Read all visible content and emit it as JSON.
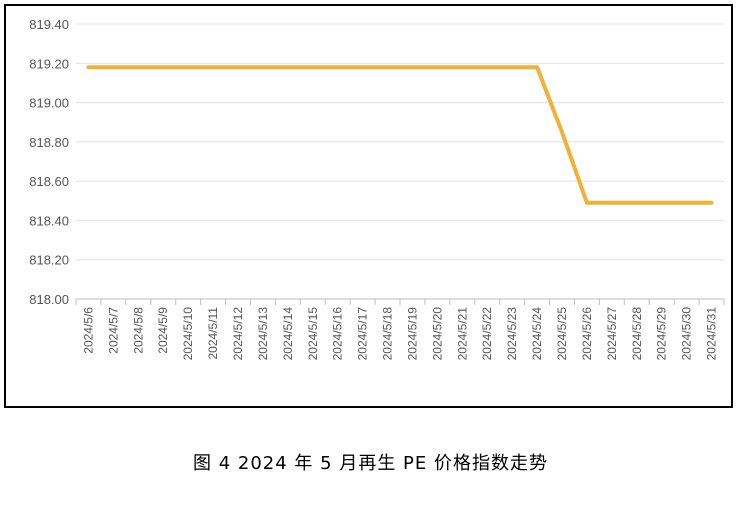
{
  "caption": "图 4  2024 年 5 月再生 PE 价格指数走势",
  "chart_data": {
    "type": "line",
    "title": "",
    "xlabel": "",
    "ylabel": "",
    "ylim": [
      818.0,
      819.4
    ],
    "yticks": [
      "819.40",
      "819.20",
      "819.00",
      "818.80",
      "818.60",
      "818.40",
      "818.20",
      "818.00"
    ],
    "grid": true,
    "categories": [
      "2024/5/6",
      "2024/5/7",
      "2024/5/8",
      "2024/5/9",
      "2024/5/10",
      "2024/5/11",
      "2024/5/12",
      "2024/5/13",
      "2024/5/14",
      "2024/5/15",
      "2024/5/16",
      "2024/5/17",
      "2024/5/18",
      "2024/5/19",
      "2024/5/20",
      "2024/5/21",
      "2024/5/22",
      "2024/5/23",
      "2024/5/24",
      "2024/5/25",
      "2024/5/26",
      "2024/5/27",
      "2024/5/28",
      "2024/5/29",
      "2024/5/30",
      "2024/5/31"
    ],
    "series": [
      {
        "color": "#F2B035",
        "values": [
          819.18,
          819.18,
          819.18,
          819.18,
          819.18,
          819.18,
          819.18,
          819.18,
          819.18,
          819.18,
          819.18,
          819.18,
          819.18,
          819.18,
          819.18,
          819.18,
          819.18,
          819.18,
          819.18,
          818.85,
          818.49,
          818.49,
          818.49,
          818.49,
          818.49,
          818.49
        ]
      }
    ]
  }
}
